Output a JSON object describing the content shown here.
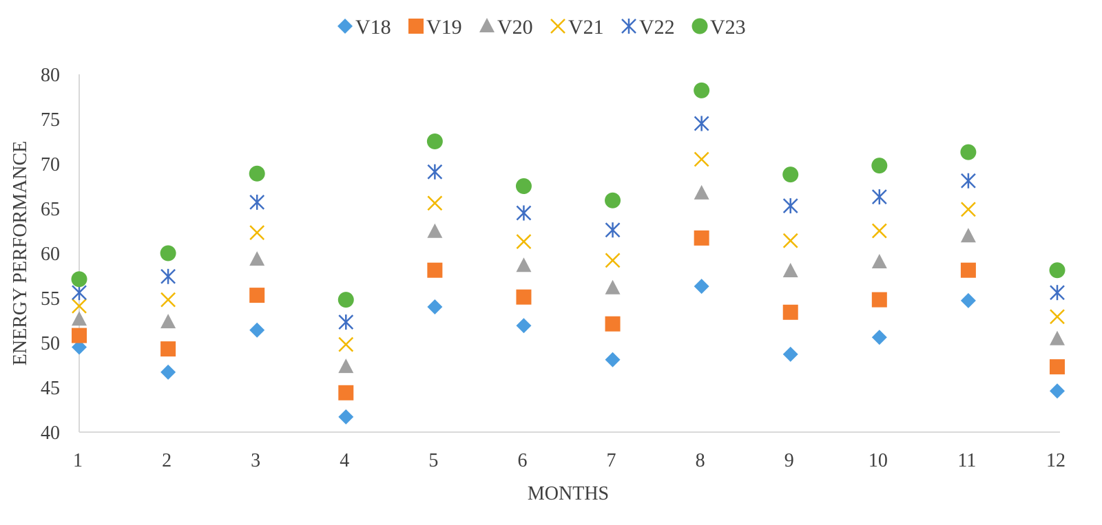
{
  "chart_data": {
    "type": "scatter",
    "xlabel": "MONTHS",
    "ylabel": "ENERGY PERFORMANCE",
    "xlim": [
      1,
      12
    ],
    "ylim": [
      40,
      80
    ],
    "x_ticks": [
      "1",
      "2",
      "3",
      "4",
      "5",
      "6",
      "7",
      "8",
      "9",
      "10",
      "11",
      "12"
    ],
    "y_ticks": [
      "40",
      "45",
      "50",
      "55",
      "60",
      "65",
      "70",
      "75",
      "80"
    ],
    "grid": false,
    "legend_position": "top-center",
    "x": [
      1,
      2,
      3,
      4,
      5,
      6,
      7,
      8,
      9,
      10,
      11,
      12
    ],
    "series": [
      {
        "name": "V18",
        "marker": "diamond",
        "color": "#4a9de0",
        "values": [
          49.5,
          46.7,
          51.4,
          41.7,
          54.0,
          51.9,
          48.1,
          56.3,
          48.7,
          50.6,
          54.7,
          44.6
        ]
      },
      {
        "name": "V19",
        "marker": "square",
        "color": "#f47c2c",
        "values": [
          50.8,
          49.3,
          55.3,
          44.4,
          58.1,
          55.1,
          52.1,
          61.7,
          53.4,
          54.8,
          58.1,
          47.3
        ]
      },
      {
        "name": "V20",
        "marker": "triangle",
        "color": "#a0a0a0",
        "values": [
          52.6,
          52.3,
          59.3,
          47.3,
          62.4,
          58.6,
          56.1,
          66.7,
          58.0,
          59.0,
          61.9,
          50.4
        ]
      },
      {
        "name": "V21",
        "marker": "x",
        "color": "#f2b800",
        "values": [
          54.1,
          54.8,
          62.3,
          49.8,
          65.6,
          61.3,
          59.2,
          70.5,
          61.4,
          62.5,
          64.9,
          52.9
        ]
      },
      {
        "name": "V22",
        "marker": "asterisk",
        "color": "#3f6fc4",
        "values": [
          55.6,
          57.4,
          65.7,
          52.3,
          69.1,
          64.5,
          62.6,
          74.5,
          65.3,
          66.3,
          68.1,
          55.6
        ]
      },
      {
        "name": "V23",
        "marker": "circle",
        "color": "#5db443",
        "values": [
          57.1,
          60.0,
          68.9,
          54.8,
          72.5,
          67.5,
          65.9,
          78.2,
          68.8,
          69.8,
          71.3,
          58.1
        ]
      }
    ]
  }
}
